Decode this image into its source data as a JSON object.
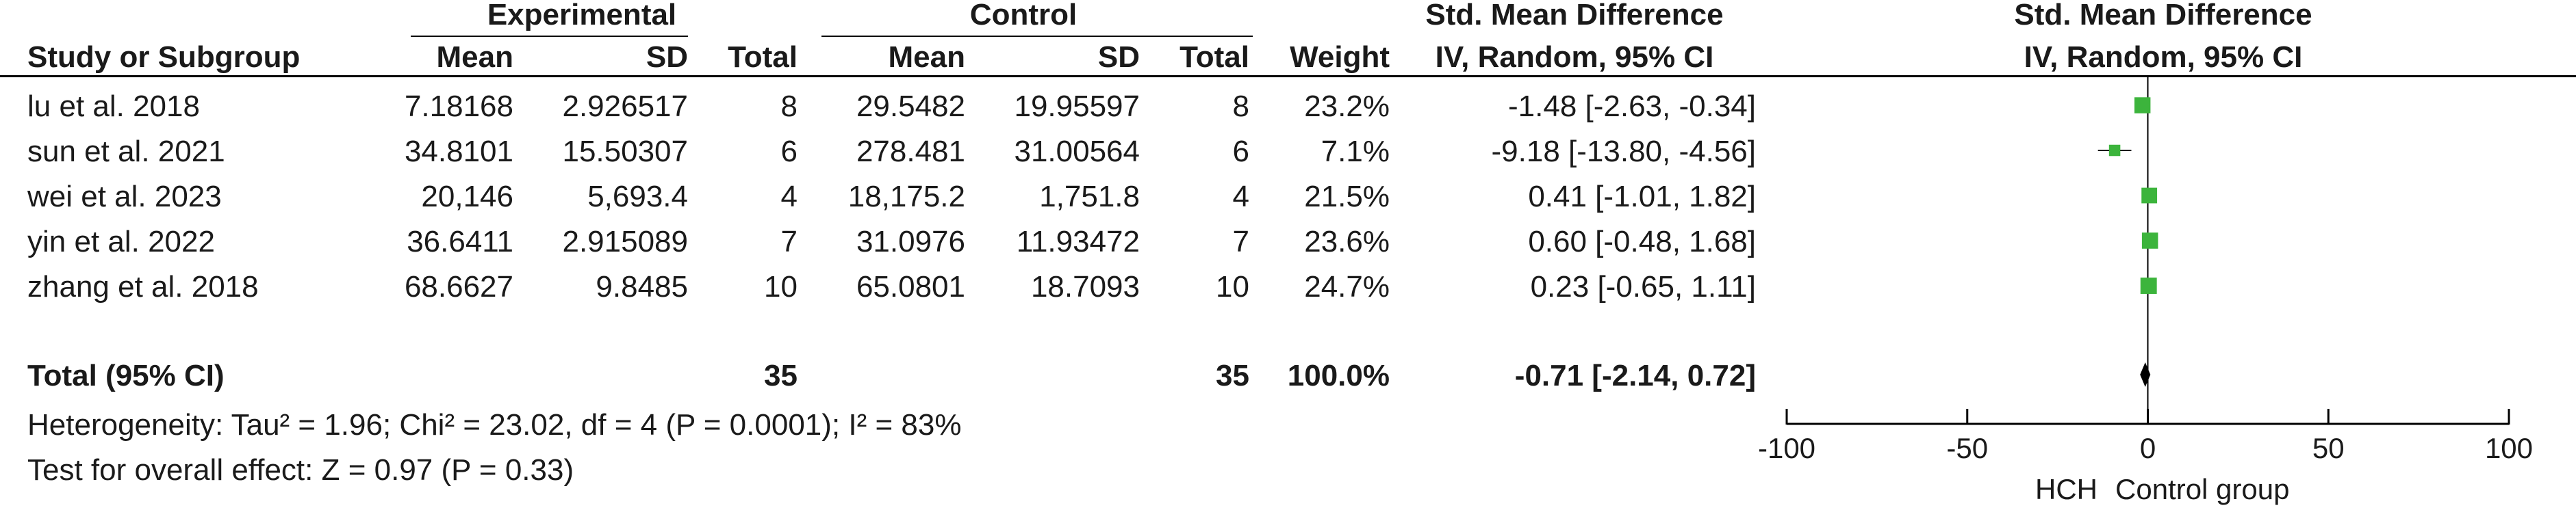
{
  "header": {
    "experimental": "Experimental",
    "control": "Control",
    "smd_title_left": "Std. Mean Difference",
    "smd_title_right": "Std. Mean Difference",
    "smd_method_left": "IV, Random, 95% CI",
    "smd_method_right": "IV, Random, 95% CI",
    "col_study": "Study or Subgroup",
    "col_mean_e": "Mean",
    "col_sd_e": "SD",
    "col_total_e": "Total",
    "col_mean_c": "Mean",
    "col_sd_c": "SD",
    "col_total_c": "Total",
    "col_weight": "Weight"
  },
  "rows": [
    {
      "study": "lu et al. 2018",
      "mean_e": "7.18168",
      "sd_e": "2.926517",
      "total_e": "8",
      "mean_c": "29.5482",
      "sd_c": "19.95597",
      "total_c": "8",
      "weight": "23.2%",
      "ci": "-1.48 [-2.63, -0.34]"
    },
    {
      "study": "sun et al. 2021",
      "mean_e": "34.8101",
      "sd_e": "15.50307",
      "total_e": "6",
      "mean_c": "278.481",
      "sd_c": "31.00564",
      "total_c": "6",
      "weight": "7.1%",
      "ci": "-9.18 [-13.80, -4.56]"
    },
    {
      "study": "wei et al. 2023",
      "mean_e": "20,146",
      "sd_e": "5,693.4",
      "total_e": "4",
      "mean_c": "18,175.2",
      "sd_c": "1,751.8",
      "total_c": "4",
      "weight": "21.5%",
      "ci": "0.41 [-1.01, 1.82]"
    },
    {
      "study": "yin et al. 2022",
      "mean_e": "36.6411",
      "sd_e": "2.915089",
      "total_e": "7",
      "mean_c": "31.0976",
      "sd_c": "11.93472",
      "total_c": "7",
      "weight": "23.6%",
      "ci": "0.60 [-0.48, 1.68]"
    },
    {
      "study": "zhang et al. 2018",
      "mean_e": "68.6627",
      "sd_e": "9.8485",
      "total_e": "10",
      "mean_c": "65.0801",
      "sd_c": "18.7093",
      "total_c": "10",
      "weight": "24.7%",
      "ci": "0.23 [-0.65, 1.11]"
    }
  ],
  "total": {
    "label": "Total (95% CI)",
    "total_e": "35",
    "total_c": "35",
    "weight": "100.0%",
    "ci": "-0.71 [-2.14, 0.72]"
  },
  "footer": {
    "heterogeneity": "Heterogeneity: Tau² = 1.96; Chi² = 23.02, df = 4 (P = 0.0001); I² = 83%",
    "overall": "Test for overall effect: Z = 0.97 (P = 0.33)",
    "favours_left": "HCH",
    "favours_right": "Control group"
  },
  "chart_data": {
    "type": "forest",
    "xlim": [
      -100,
      100
    ],
    "xticks": [
      -100,
      -50,
      0,
      50,
      100
    ],
    "xtick_labels": [
      "-100",
      "-50",
      "0",
      "50",
      "100"
    ],
    "marker_color": "#3cb43c",
    "studies": [
      {
        "name": "lu et al. 2018",
        "smd": -1.48,
        "lower": -2.63,
        "upper": -0.34,
        "weight": 23.2
      },
      {
        "name": "sun et al. 2021",
        "smd": -9.18,
        "lower": -13.8,
        "upper": -4.56,
        "weight": 7.1
      },
      {
        "name": "wei et al. 2023",
        "smd": 0.41,
        "lower": -1.01,
        "upper": 1.82,
        "weight": 21.5
      },
      {
        "name": "yin et al. 2022",
        "smd": 0.6,
        "lower": -0.48,
        "upper": 1.68,
        "weight": 23.6
      },
      {
        "name": "zhang et al. 2018",
        "smd": 0.23,
        "lower": -0.65,
        "upper": 1.11,
        "weight": 24.7
      }
    ],
    "pooled": {
      "smd": -0.71,
      "lower": -2.14,
      "upper": 0.72
    }
  }
}
